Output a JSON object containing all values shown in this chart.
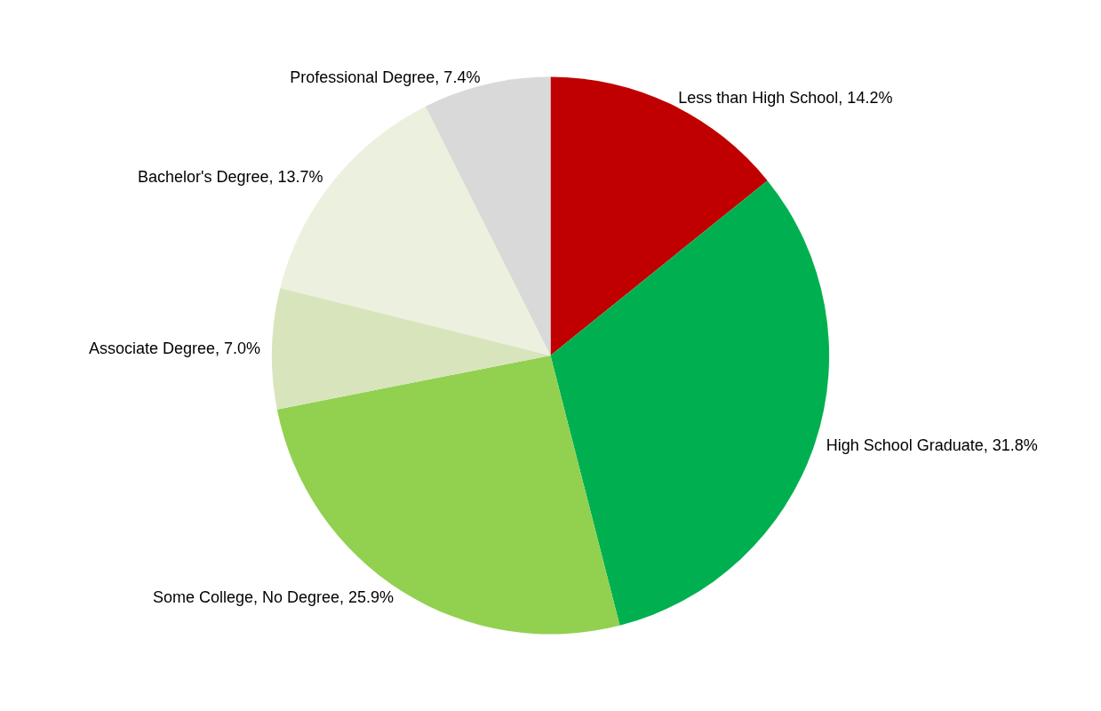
{
  "chart_data": {
    "type": "pie",
    "categories": [
      "Less than High School",
      "High School Graduate",
      "Some College, No Degree",
      "Associate Degree",
      "Bachelor's Degree",
      "Professional Degree"
    ],
    "values": [
      14.2,
      31.8,
      25.9,
      7.0,
      13.7,
      7.4
    ],
    "colors": [
      "#c00000",
      "#00b050",
      "#92d050",
      "#d8e4bc",
      "#ebf1de",
      "#d9d9d9"
    ],
    "value_labels": [
      "14.2%",
      "31.8%",
      "25.9%",
      "7.0%",
      "13.7%",
      "7.4%"
    ],
    "legend": false
  }
}
